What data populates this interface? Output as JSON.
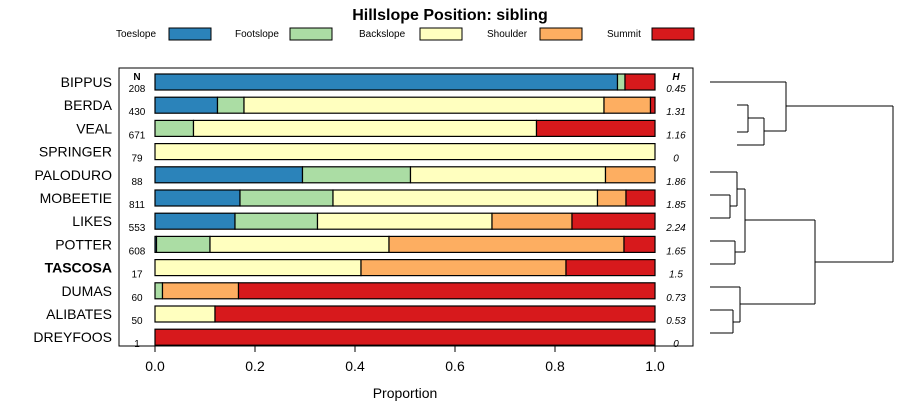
{
  "chart_data": {
    "type": "bar",
    "orientation": "horizontal",
    "stacked": true,
    "title": "Hillslope Position: sibling",
    "xlabel": "Proportion",
    "ylabel": "",
    "xlim": [
      0,
      1
    ],
    "xticks": [
      "0.0",
      "0.2",
      "0.4",
      "0.6",
      "0.8",
      "1.0"
    ],
    "xtick_values": [
      0,
      0.2,
      0.4,
      0.6,
      0.8,
      1.0
    ],
    "n_header": "N",
    "h_header": "H",
    "legend_position": "top",
    "highlighted_category": "TASCOSA",
    "categories": [
      "BIPPUS",
      "BERDA",
      "VEAL",
      "SPRINGER",
      "PALODURO",
      "MOBEETIE",
      "LIKES",
      "POTTER",
      "TASCOSA",
      "DUMAS",
      "ALIBATES",
      "DREYFOOS"
    ],
    "n": [
      "208",
      "430",
      "671",
      "79",
      "88",
      "811",
      "553",
      "608",
      "17",
      "60",
      "50",
      "1"
    ],
    "h": [
      "0.45",
      "1.31",
      "1.16",
      "0",
      "1.86",
      "1.85",
      "2.24",
      "1.65",
      "1.5",
      "0.73",
      "0.53",
      "0"
    ],
    "series": [
      {
        "name": "Toeslope",
        "color": "#2b83ba",
        "values": [
          0.925,
          0.125,
          0.0,
          0.0,
          0.295,
          0.17,
          0.16,
          0.003,
          0.0,
          0.0,
          0.0,
          0.0
        ]
      },
      {
        "name": "Footslope",
        "color": "#abdda4",
        "values": [
          0.015,
          0.053,
          0.077,
          0.0,
          0.216,
          0.186,
          0.165,
          0.107,
          0.0,
          0.015,
          0.0,
          0.0
        ]
      },
      {
        "name": "Backslope",
        "color": "#ffffbf",
        "values": [
          0.0,
          0.72,
          0.686,
          1.0,
          0.39,
          0.529,
          0.349,
          0.358,
          0.412,
          0.0,
          0.12,
          0.0
        ]
      },
      {
        "name": "Shoulder",
        "color": "#fdae61",
        "values": [
          0.0,
          0.093,
          0.0,
          0.0,
          0.099,
          0.057,
          0.16,
          0.47,
          0.41,
          0.152,
          0.0,
          0.0
        ]
      },
      {
        "name": "Summit",
        "color": "#d7191c",
        "values": [
          0.06,
          0.009,
          0.237,
          0.0,
          0.0,
          0.058,
          0.166,
          0.062,
          0.178,
          0.833,
          0.88,
          1.0
        ]
      }
    ]
  }
}
